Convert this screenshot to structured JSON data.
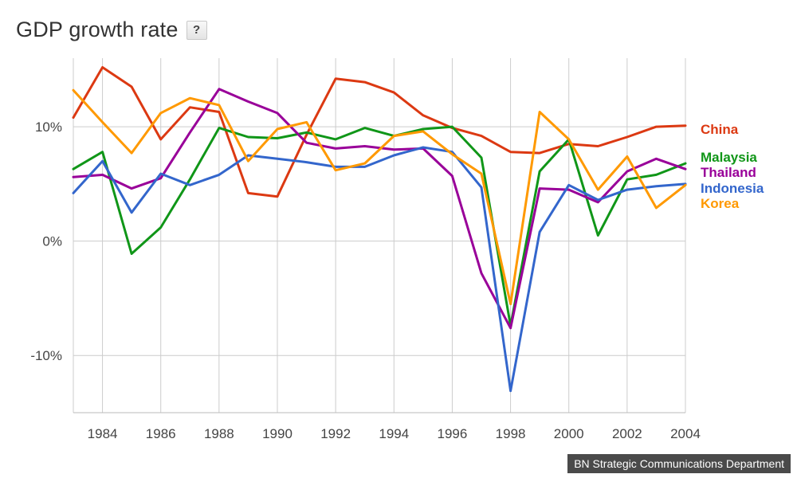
{
  "chart_data": {
    "type": "line",
    "title": "GDP growth rate",
    "help_label": "?",
    "x": [
      1983,
      1984,
      1985,
      1986,
      1987,
      1988,
      1989,
      1990,
      1991,
      1992,
      1993,
      1994,
      1995,
      1996,
      1997,
      1998,
      1999,
      2000,
      2001,
      2002,
      2003,
      2004
    ],
    "xticks": [
      "1984",
      "1986",
      "1988",
      "1990",
      "1992",
      "1994",
      "1996",
      "1998",
      "2000",
      "2002",
      "2004"
    ],
    "yticks": [
      {
        "value": 10,
        "label": "10%"
      },
      {
        "value": 0,
        "label": "0%"
      },
      {
        "value": -10,
        "label": "-10%"
      }
    ],
    "xlim": [
      1983,
      2004
    ],
    "ylim": [
      -15,
      16
    ],
    "grid": true,
    "legend_position": "right",
    "series": [
      {
        "name": "China",
        "color": "#dc3912",
        "values": [
          10.8,
          15.2,
          13.5,
          8.9,
          11.7,
          11.3,
          4.2,
          3.9,
          9.3,
          14.2,
          13.9,
          13.0,
          11.0,
          9.9,
          9.2,
          7.8,
          7.7,
          8.5,
          8.3,
          9.1,
          10.0,
          10.1
        ]
      },
      {
        "name": "Malaysia",
        "color": "#109618",
        "values": [
          6.3,
          7.8,
          -1.1,
          1.2,
          5.4,
          9.9,
          9.1,
          9.0,
          9.5,
          8.9,
          9.9,
          9.2,
          9.8,
          10.0,
          7.3,
          -7.4,
          6.1,
          8.9,
          0.5,
          5.4,
          5.8,
          6.8
        ]
      },
      {
        "name": "Thailand",
        "color": "#990099",
        "values": [
          5.6,
          5.8,
          4.6,
          5.5,
          9.5,
          13.3,
          12.2,
          11.2,
          8.6,
          8.1,
          8.3,
          8.0,
          8.1,
          5.7,
          -2.8,
          -7.6,
          4.6,
          4.5,
          3.4,
          6.1,
          7.2,
          6.3
        ]
      },
      {
        "name": "Indonesia",
        "color": "#3366cc",
        "values": [
          4.2,
          7.0,
          2.5,
          5.9,
          4.9,
          5.8,
          7.5,
          7.2,
          6.9,
          6.5,
          6.5,
          7.5,
          8.2,
          7.8,
          4.7,
          -13.1,
          0.8,
          4.9,
          3.6,
          4.5,
          4.8,
          5.0
        ]
      },
      {
        "name": "Korea",
        "color": "#ff9900",
        "values": [
          13.2,
          10.4,
          7.7,
          11.2,
          12.5,
          11.9,
          7.0,
          9.8,
          10.4,
          6.2,
          6.8,
          9.2,
          9.6,
          7.6,
          5.9,
          -5.5,
          11.3,
          8.9,
          4.5,
          7.4,
          2.9,
          4.9
        ]
      }
    ],
    "legend_order": [
      "China",
      "Malaysia",
      "Thailand",
      "Indonesia",
      "Korea"
    ]
  },
  "credit": "BN Strategic Communications Department"
}
